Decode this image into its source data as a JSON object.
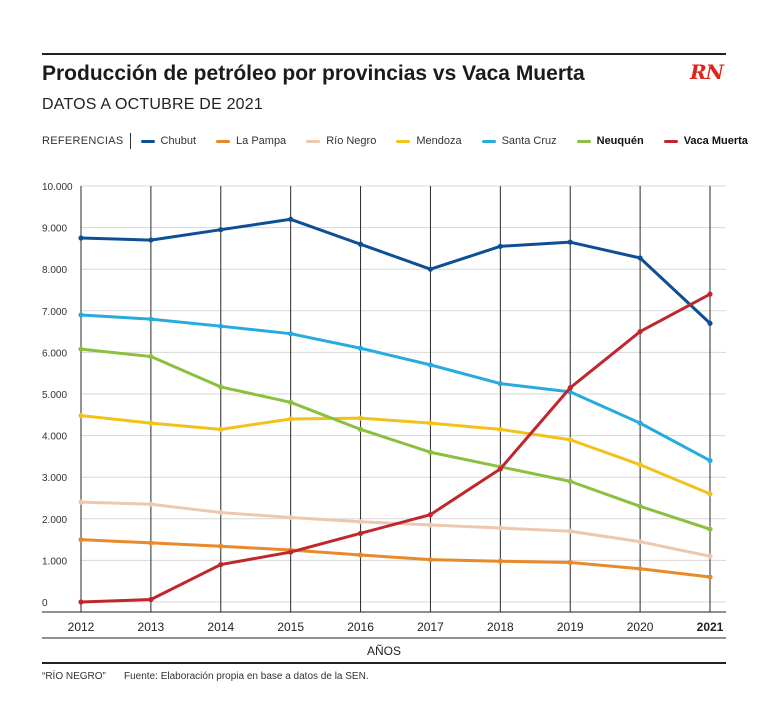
{
  "header": {
    "title": "Producción de petróleo por provincias vs Vaca Muerta",
    "subtitle": "DATOS A OCTUBRE DE 2021",
    "logo": "RN"
  },
  "legend": {
    "label": "REFERENCIAS"
  },
  "footer": {
    "note": "“RÍO NEGRO”",
    "source": "Fuente: Elaboración propia en base a datos de la SEN."
  },
  "chart_data": {
    "type": "line",
    "title": "Producción de petróleo por provincias vs Vaca Muerta",
    "subtitle": "DATOS A OCTUBRE DE 2021",
    "xlabel": "AÑOS",
    "ylabel": "",
    "x": [
      "2012",
      "2013",
      "2014",
      "2015",
      "2016",
      "2017",
      "2018",
      "2019",
      "2020",
      "2021"
    ],
    "ylim": [
      0,
      10000
    ],
    "yticks": [
      0,
      1000,
      2000,
      3000,
      4000,
      5000,
      6000,
      7000,
      8000,
      9000,
      10000
    ],
    "ytick_labels": [
      "0",
      "1.000",
      "2.000",
      "3.000",
      "4.000",
      "5.000",
      "6.000",
      "7.000",
      "8.000",
      "9.000",
      "10.000"
    ],
    "grid": true,
    "legend_position": "top",
    "series": [
      {
        "name": "Chubut",
        "color": "#0d4f96",
        "bold": false,
        "values": [
          8750,
          8700,
          8950,
          9200,
          8600,
          8000,
          8550,
          8650,
          8270,
          6700
        ]
      },
      {
        "name": "La Pampa",
        "color": "#e8892b",
        "bold": false,
        "values": [
          1500,
          1420,
          1340,
          1250,
          1130,
          1020,
          980,
          950,
          800,
          600
        ]
      },
      {
        "name": "Río Negro",
        "color": "#ecc9ae",
        "bold": false,
        "values": [
          2400,
          2350,
          2150,
          2030,
          1930,
          1850,
          1780,
          1700,
          1450,
          1100
        ]
      },
      {
        "name": "Mendoza",
        "color": "#f3c21a",
        "bold": false,
        "values": [
          4480,
          4300,
          4150,
          4400,
          4420,
          4300,
          4150,
          3900,
          3300,
          2600
        ]
      },
      {
        "name": "Santa Cruz",
        "color": "#27abdf",
        "bold": false,
        "values": [
          6900,
          6800,
          6630,
          6450,
          6100,
          5700,
          5250,
          5050,
          4300,
          3400
        ]
      },
      {
        "name": "Neuquén",
        "color": "#8dbf3f",
        "bold": true,
        "values": [
          6080,
          5900,
          5170,
          4800,
          4150,
          3600,
          3250,
          2900,
          2300,
          1750
        ]
      },
      {
        "name": "Vaca Muerta",
        "color": "#c0272d",
        "bold": true,
        "values": [
          0,
          60,
          900,
          1200,
          1650,
          2100,
          3200,
          5150,
          6500,
          7400
        ]
      }
    ]
  }
}
